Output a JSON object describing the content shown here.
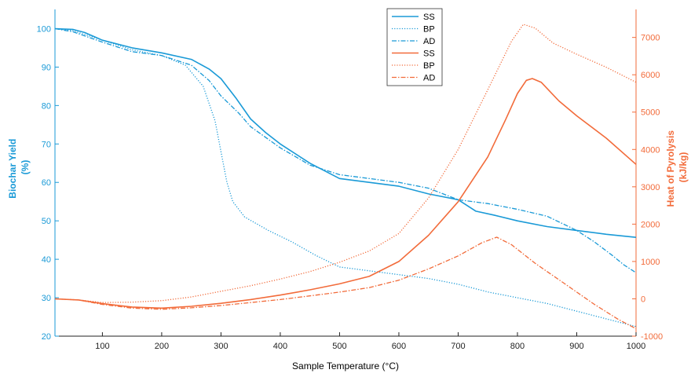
{
  "chart_data": {
    "type": "line",
    "x": {
      "label": "Sample Temperature (°C)",
      "range": [
        20,
        1000
      ],
      "ticks": [
        100,
        200,
        300,
        400,
        500,
        600,
        700,
        800,
        900,
        1000
      ]
    },
    "y_left": {
      "label_lines": [
        "Biochar Yield",
        "(%)"
      ],
      "range": [
        20,
        105
      ],
      "ticks": [
        20,
        30,
        40,
        50,
        60,
        70,
        80,
        90,
        100
      ],
      "color": "#1a9ad7"
    },
    "y_right": {
      "label_lines": [
        "Heat of Pyrolysis",
        "(kJ/kg)"
      ],
      "range": [
        -1000,
        7750
      ],
      "ticks": [
        -1000,
        0,
        1000,
        2000,
        3000,
        4000,
        5000,
        6000,
        7000
      ],
      "color": "#f26b3a"
    },
    "legend_position": "top-center",
    "series": [
      {
        "name": "SS",
        "axis": "left",
        "style": "solid",
        "color": "#1a9ad7",
        "points": [
          [
            20,
            100
          ],
          [
            50,
            99.8
          ],
          [
            70,
            99
          ],
          [
            100,
            97
          ],
          [
            150,
            95
          ],
          [
            200,
            93.7
          ],
          [
            250,
            92
          ],
          [
            280,
            89.5
          ],
          [
            300,
            87
          ],
          [
            325,
            82
          ],
          [
            350,
            76.5
          ],
          [
            375,
            73
          ],
          [
            400,
            70
          ],
          [
            450,
            65
          ],
          [
            500,
            61
          ],
          [
            550,
            60
          ],
          [
            600,
            59
          ],
          [
            650,
            57
          ],
          [
            700,
            55.5
          ],
          [
            730,
            52.5
          ],
          [
            760,
            51.5
          ],
          [
            800,
            50
          ],
          [
            850,
            48.5
          ],
          [
            900,
            47.5
          ],
          [
            950,
            46.5
          ],
          [
            1000,
            45.7
          ]
        ]
      },
      {
        "name": "BP",
        "axis": "left",
        "style": "dotted",
        "color": "#1a9ad7",
        "points": [
          [
            20,
            100
          ],
          [
            50,
            99.5
          ],
          [
            100,
            97
          ],
          [
            150,
            94.5
          ],
          [
            200,
            93
          ],
          [
            240,
            90.5
          ],
          [
            270,
            85
          ],
          [
            290,
            76
          ],
          [
            300,
            68
          ],
          [
            310,
            60
          ],
          [
            320,
            55
          ],
          [
            340,
            51
          ],
          [
            380,
            47.5
          ],
          [
            420,
            44.5
          ],
          [
            460,
            41
          ],
          [
            500,
            38
          ],
          [
            550,
            37
          ],
          [
            600,
            36
          ],
          [
            650,
            35
          ],
          [
            700,
            33.5
          ],
          [
            750,
            31.5
          ],
          [
            800,
            30
          ],
          [
            850,
            28.5
          ],
          [
            900,
            26.5
          ],
          [
            950,
            24.5
          ],
          [
            1000,
            22.5
          ]
        ]
      },
      {
        "name": "AD",
        "axis": "left",
        "style": "dashdot",
        "color": "#1a9ad7",
        "points": [
          [
            20,
            100
          ],
          [
            50,
            99.2
          ],
          [
            100,
            96.5
          ],
          [
            150,
            94
          ],
          [
            200,
            93
          ],
          [
            250,
            90.5
          ],
          [
            280,
            86.5
          ],
          [
            300,
            82.5
          ],
          [
            330,
            78
          ],
          [
            350,
            74.5
          ],
          [
            400,
            69
          ],
          [
            450,
            64.5
          ],
          [
            500,
            62
          ],
          [
            550,
            61
          ],
          [
            600,
            60
          ],
          [
            650,
            58.5
          ],
          [
            700,
            55.5
          ],
          [
            750,
            54.5
          ],
          [
            800,
            53
          ],
          [
            850,
            51.2
          ],
          [
            900,
            47.5
          ],
          [
            930,
            44.5
          ],
          [
            960,
            41
          ],
          [
            980,
            38.5
          ],
          [
            1000,
            36.5
          ]
        ]
      },
      {
        "name": "SS",
        "axis": "right",
        "style": "solid",
        "color": "#f26b3a",
        "points": [
          [
            20,
            0
          ],
          [
            60,
            -30
          ],
          [
            100,
            -130
          ],
          [
            150,
            -220
          ],
          [
            200,
            -250
          ],
          [
            250,
            -200
          ],
          [
            300,
            -120
          ],
          [
            350,
            -20
          ],
          [
            400,
            100
          ],
          [
            450,
            240
          ],
          [
            500,
            400
          ],
          [
            550,
            600
          ],
          [
            600,
            1000
          ],
          [
            650,
            1700
          ],
          [
            700,
            2600
          ],
          [
            750,
            3800
          ],
          [
            780,
            4800
          ],
          [
            800,
            5500
          ],
          [
            815,
            5850
          ],
          [
            825,
            5900
          ],
          [
            840,
            5800
          ],
          [
            870,
            5300
          ],
          [
            900,
            4900
          ],
          [
            950,
            4300
          ],
          [
            1000,
            3600
          ]
        ]
      },
      {
        "name": "BP",
        "axis": "right",
        "style": "dotted",
        "color": "#f26b3a",
        "points": [
          [
            20,
            0
          ],
          [
            60,
            -30
          ],
          [
            100,
            -100
          ],
          [
            150,
            -90
          ],
          [
            200,
            -50
          ],
          [
            250,
            50
          ],
          [
            300,
            200
          ],
          [
            350,
            350
          ],
          [
            400,
            530
          ],
          [
            450,
            730
          ],
          [
            500,
            980
          ],
          [
            550,
            1280
          ],
          [
            600,
            1750
          ],
          [
            650,
            2700
          ],
          [
            700,
            4000
          ],
          [
            750,
            5600
          ],
          [
            790,
            6900
          ],
          [
            810,
            7350
          ],
          [
            830,
            7250
          ],
          [
            860,
            6850
          ],
          [
            900,
            6550
          ],
          [
            950,
            6200
          ],
          [
            1000,
            5800
          ]
        ]
      },
      {
        "name": "AD",
        "axis": "right",
        "style": "dashdot",
        "color": "#f26b3a",
        "points": [
          [
            20,
            0
          ],
          [
            60,
            -30
          ],
          [
            100,
            -150
          ],
          [
            150,
            -250
          ],
          [
            200,
            -280
          ],
          [
            250,
            -240
          ],
          [
            300,
            -180
          ],
          [
            350,
            -100
          ],
          [
            400,
            -20
          ],
          [
            450,
            80
          ],
          [
            500,
            180
          ],
          [
            550,
            300
          ],
          [
            600,
            500
          ],
          [
            650,
            800
          ],
          [
            700,
            1150
          ],
          [
            740,
            1500
          ],
          [
            765,
            1650
          ],
          [
            790,
            1450
          ],
          [
            830,
            950
          ],
          [
            880,
            400
          ],
          [
            930,
            -150
          ],
          [
            970,
            -550
          ],
          [
            1000,
            -800
          ]
        ]
      }
    ]
  }
}
